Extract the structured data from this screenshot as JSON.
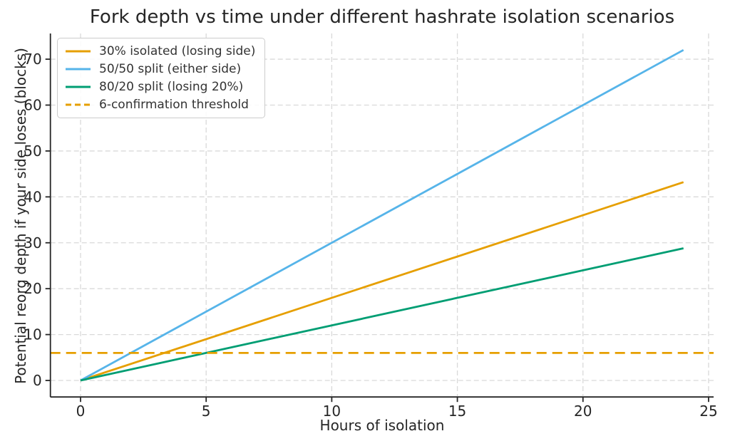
{
  "chart_data": {
    "type": "line",
    "title": "Fork depth vs time under different hashrate isolation scenarios",
    "xlabel": "Hours of isolation",
    "ylabel": "Potential reorg depth if your side loses (blocks)",
    "x_ticks": [
      0,
      5,
      10,
      15,
      20,
      25
    ],
    "y_ticks": [
      0,
      10,
      20,
      30,
      40,
      50,
      60,
      70
    ],
    "xlim": [
      -1.2,
      25.2
    ],
    "ylim": [
      -3.6,
      75.6
    ],
    "grid": true,
    "grid_style": "dashed",
    "legend_position": "upper-left",
    "colors": {
      "grid": "#d9d9d9",
      "axis": "#262626",
      "text": "#262626",
      "legend_border": "#cccccc"
    },
    "series": [
      {
        "name": "30% isolated (losing side)",
        "color": "#E69F00",
        "dash": "solid",
        "x": [
          0,
          24
        ],
        "y": [
          0,
          43.2
        ]
      },
      {
        "name": "50/50 split (either side)",
        "color": "#56B4E9",
        "dash": "solid",
        "x": [
          0,
          24
        ],
        "y": [
          0,
          72
        ]
      },
      {
        "name": "80/20 split (losing 20%)",
        "color": "#009E73",
        "dash": "solid",
        "x": [
          0,
          24
        ],
        "y": [
          0,
          28.8
        ]
      },
      {
        "name": "6-confirmation threshold",
        "color": "#E69F00",
        "dash": "dashed",
        "x": [
          -1.2,
          25.2
        ],
        "y": [
          6,
          6
        ]
      }
    ]
  }
}
